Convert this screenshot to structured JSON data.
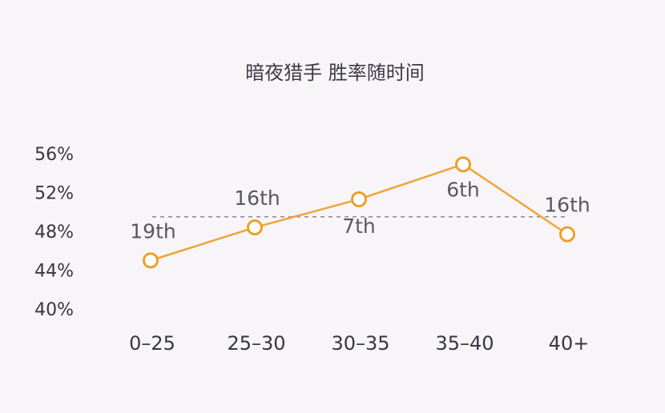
{
  "chart_data": {
    "type": "line",
    "title": "暗夜猎手 胜率随时间",
    "categories": [
      "0-25",
      "25-30",
      "30-35",
      "35-40",
      "40+"
    ],
    "x_tick_labels": [
      "0–25",
      "25–30",
      "30–35",
      "35–40",
      "40+"
    ],
    "y_tick_labels": [
      "56%",
      "52%",
      "48%",
      "44%",
      "40%"
    ],
    "y_ticks": [
      56,
      52,
      48,
      44,
      40
    ],
    "ylim": [
      40,
      56
    ],
    "series": [
      {
        "values": [
          45.0,
          48.4,
          51.3,
          54.9,
          47.7
        ],
        "point_labels": [
          "19th",
          "16th",
          "7th",
          "6th",
          "16th"
        ]
      }
    ],
    "reference_line": 49.5,
    "colors": {
      "line": "#f0a43a",
      "marker_stroke": "#eba129",
      "marker_fill": "#ffffff",
      "reference_line": "#8e8794",
      "background": "#f7f5f8"
    },
    "grid": false,
    "legend": "none"
  }
}
